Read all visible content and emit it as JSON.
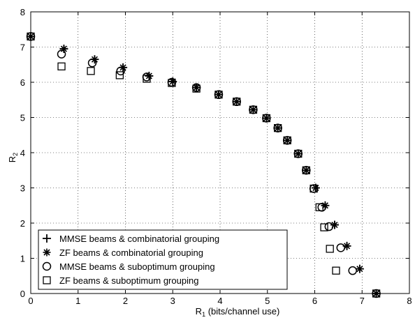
{
  "chart_data": {
    "type": "scatter",
    "title": "",
    "xlabel": "R1 (bits/channel use)",
    "xlabel_main": "R",
    "xlabel_sub": "1",
    "xlabel_rest": " (bits/channel use)",
    "ylabel": "R2",
    "ylabel_main": "R",
    "ylabel_sub": "2",
    "xlim": [
      0,
      8
    ],
    "ylim": [
      0,
      8
    ],
    "xticks": [
      "0",
      "1",
      "2",
      "3",
      "4",
      "5",
      "6",
      "7",
      "8"
    ],
    "yticks": [
      "0",
      "1",
      "2",
      "3",
      "4",
      "5",
      "6",
      "7",
      "8"
    ],
    "grid": true,
    "legend_position": "bottom-left",
    "series": [
      {
        "name": "MMSE beams & combinatorial grouping",
        "marker": "plus",
        "x": [
          0,
          0.7,
          1.35,
          1.95,
          2.5,
          3.0,
          3.5,
          3.97,
          4.35,
          4.7,
          4.98,
          5.22,
          5.42,
          5.65,
          5.82,
          6.02,
          6.22,
          6.42,
          6.68,
          6.95,
          7.3
        ],
        "y": [
          7.3,
          6.95,
          6.65,
          6.42,
          6.18,
          6.02,
          5.85,
          5.65,
          5.45,
          5.22,
          4.98,
          4.7,
          4.35,
          3.97,
          3.5,
          3.0,
          2.5,
          1.95,
          1.35,
          0.7,
          0
        ]
      },
      {
        "name": "ZF beams & combinatorial grouping",
        "marker": "asterisk",
        "x": [
          0,
          0.7,
          1.35,
          1.95,
          2.5,
          3.0,
          3.5,
          3.97,
          4.35,
          4.7,
          4.98,
          5.22,
          5.42,
          5.65,
          5.82,
          6.02,
          6.22,
          6.42,
          6.68,
          6.95,
          7.3
        ],
        "y": [
          7.3,
          6.95,
          6.65,
          6.42,
          6.18,
          6.02,
          5.85,
          5.65,
          5.45,
          5.22,
          4.98,
          4.7,
          4.35,
          3.97,
          3.5,
          3.0,
          2.5,
          1.95,
          1.35,
          0.7,
          0
        ]
      },
      {
        "name": "MMSE beams & suboptimum grouping",
        "marker": "circle",
        "x": [
          0,
          0.65,
          1.3,
          1.9,
          2.45,
          2.98,
          3.5,
          3.97,
          4.35,
          4.7,
          4.98,
          5.22,
          5.42,
          5.65,
          5.82,
          5.98,
          6.15,
          6.3,
          6.55,
          6.8,
          7.3
        ],
        "y": [
          7.3,
          6.8,
          6.55,
          6.32,
          6.15,
          6.0,
          5.85,
          5.65,
          5.45,
          5.22,
          4.98,
          4.7,
          4.35,
          3.97,
          3.5,
          2.98,
          2.45,
          1.9,
          1.3,
          0.65,
          0
        ]
      },
      {
        "name": "ZF beams & suboptimum grouping",
        "marker": "square",
        "x": [
          0,
          0.65,
          1.27,
          1.88,
          2.45,
          2.98,
          3.5,
          3.97,
          4.35,
          4.7,
          4.98,
          5.22,
          5.42,
          5.65,
          5.82,
          5.98,
          6.1,
          6.2,
          6.32,
          6.45,
          7.3
        ],
        "y": [
          7.3,
          6.45,
          6.32,
          6.2,
          6.1,
          5.98,
          5.82,
          5.65,
          5.45,
          5.22,
          4.98,
          4.7,
          4.35,
          3.97,
          3.5,
          2.98,
          2.45,
          1.88,
          1.27,
          0.65,
          0
        ]
      }
    ]
  }
}
